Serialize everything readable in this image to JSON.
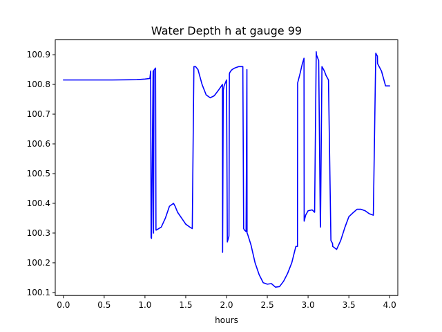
{
  "chart_data": {
    "type": "line",
    "title": "Water Depth h at gauge 99",
    "xlabel": "hours",
    "ylabel": "",
    "xlim": [
      -0.1,
      4.1
    ],
    "ylim": [
      100.09,
      100.95
    ],
    "xticks": [
      0.0,
      0.5,
      1.0,
      1.5,
      2.0,
      2.5,
      3.0,
      3.5,
      4.0
    ],
    "xtick_labels": [
      "0.0",
      "0.5",
      "1.0",
      "1.5",
      "2.0",
      "2.5",
      "3.0",
      "3.5",
      "4.0"
    ],
    "yticks": [
      100.1,
      100.2,
      100.3,
      100.4,
      100.5,
      100.6,
      100.7,
      100.8,
      100.9
    ],
    "ytick_labels": [
      "100.1",
      "100.2",
      "100.3",
      "100.4",
      "100.5",
      "100.6",
      "100.7",
      "100.8",
      "100.9"
    ],
    "grid": false,
    "series": [
      {
        "color": "#0000ff",
        "x": [
          0.0,
          0.3,
          0.6,
          0.9,
          1.0,
          1.06,
          1.07,
          1.075,
          1.08,
          1.1,
          1.105,
          1.11,
          1.13,
          1.135,
          1.14,
          1.15,
          1.2,
          1.25,
          1.3,
          1.35,
          1.37,
          1.4,
          1.45,
          1.5,
          1.55,
          1.58,
          1.6,
          1.62,
          1.65,
          1.7,
          1.75,
          1.8,
          1.85,
          1.9,
          1.95,
          1.952,
          1.96,
          1.97,
          2.0,
          2.01,
          2.02,
          2.03,
          2.035,
          2.04,
          2.06,
          2.08,
          2.1,
          2.15,
          2.2,
          2.21,
          2.22,
          2.24,
          2.25,
          2.252,
          2.26,
          2.3,
          2.35,
          2.4,
          2.45,
          2.5,
          2.55,
          2.6,
          2.65,
          2.7,
          2.75,
          2.8,
          2.85,
          2.87,
          2.872,
          2.9,
          2.93,
          2.95,
          2.952,
          2.97,
          3.0,
          3.05,
          3.08,
          3.1,
          3.102,
          3.13,
          3.15,
          3.152,
          3.17,
          3.2,
          3.22,
          3.25,
          3.28,
          3.3,
          3.302,
          3.35,
          3.4,
          3.45,
          3.5,
          3.55,
          3.6,
          3.65,
          3.7,
          3.75,
          3.8,
          3.83,
          3.85,
          3.852,
          3.9,
          3.95,
          4.0
        ],
        "y": [
          100.815,
          100.815,
          100.815,
          100.816,
          100.818,
          100.82,
          100.845,
          100.285,
          100.282,
          100.845,
          100.3,
          100.848,
          100.855,
          100.31,
          100.31,
          100.312,
          100.32,
          100.35,
          100.39,
          100.4,
          100.39,
          100.37,
          100.35,
          100.33,
          100.32,
          100.315,
          100.86,
          100.86,
          100.85,
          100.8,
          100.765,
          100.755,
          100.762,
          100.78,
          100.8,
          100.235,
          100.78,
          100.795,
          100.815,
          100.27,
          100.28,
          100.29,
          100.835,
          100.84,
          100.848,
          100.852,
          100.855,
          100.86,
          100.86,
          100.315,
          100.31,
          100.305,
          100.85,
          100.3,
          100.295,
          100.26,
          100.2,
          100.16,
          100.133,
          100.128,
          100.13,
          100.118,
          100.12,
          100.138,
          100.165,
          100.2,
          100.255,
          100.255,
          100.805,
          100.835,
          100.87,
          100.888,
          100.34,
          100.36,
          100.375,
          100.378,
          100.37,
          100.91,
          100.9,
          100.88,
          100.33,
          100.32,
          100.86,
          100.845,
          100.83,
          100.815,
          100.275,
          100.265,
          100.255,
          100.245,
          100.275,
          100.318,
          100.355,
          100.368,
          100.38,
          100.38,
          100.375,
          100.365,
          100.36,
          100.905,
          100.895,
          100.87,
          100.845,
          100.795,
          100.795
        ]
      }
    ]
  }
}
